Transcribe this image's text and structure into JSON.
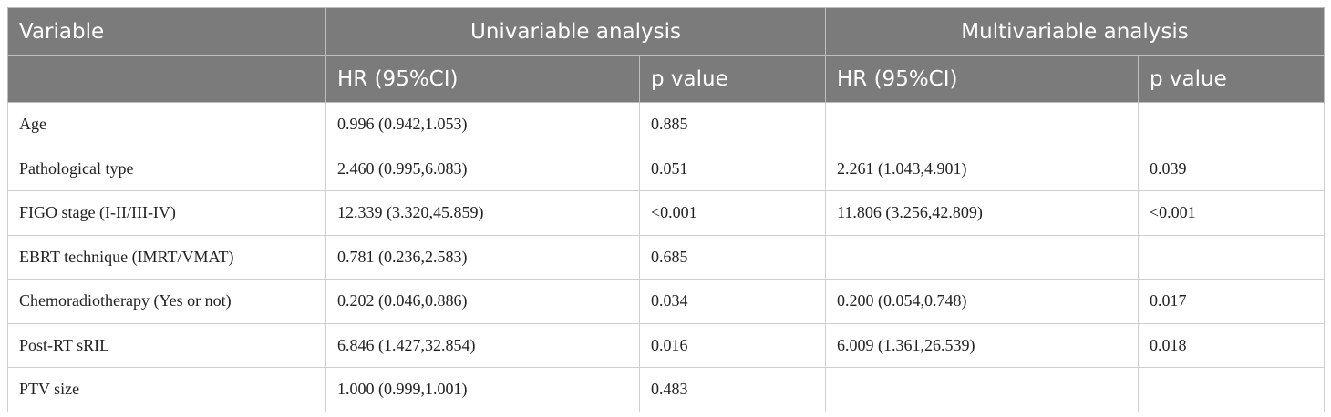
{
  "header": {
    "variable": "Variable",
    "univariable": "Univariable analysis",
    "multivariable": "Multivariable analysis",
    "hr_label": "HR (95%CI)",
    "p_label": "p value"
  },
  "rows": [
    {
      "variable": "Age",
      "uni_hr": "0.996 (0.942,1.053)",
      "uni_p": "0.885",
      "multi_hr": "",
      "multi_p": ""
    },
    {
      "variable": "Pathological type",
      "uni_hr": "2.460 (0.995,6.083)",
      "uni_p": "0.051",
      "multi_hr": "2.261 (1.043,4.901)",
      "multi_p": "0.039"
    },
    {
      "variable": "FIGO stage (I-II/III-IV)",
      "uni_hr": "12.339 (3.320,45.859)",
      "uni_p": "<0.001",
      "multi_hr": "11.806 (3.256,42.809)",
      "multi_p": "<0.001"
    },
    {
      "variable": "EBRT technique (IMRT/VMAT)",
      "uni_hr": "0.781 (0.236,2.583)",
      "uni_p": "0.685",
      "multi_hr": "",
      "multi_p": ""
    },
    {
      "variable": "Chemoradiotherapy (Yes or not)",
      "uni_hr": "0.202 (0.046,0.886)",
      "uni_p": "0.034",
      "multi_hr": "0.200 (0.054,0.748)",
      "multi_p": "0.017"
    },
    {
      "variable": "Post-RT sRIL",
      "uni_hr": "6.846 (1.427,32.854)",
      "uni_p": "0.016",
      "multi_hr": "6.009 (1.361,26.539)",
      "multi_p": "0.018"
    },
    {
      "variable": "PTV size",
      "uni_hr": "1.000 (0.999,1.001)",
      "uni_p": "0.483",
      "multi_hr": "",
      "multi_p": ""
    }
  ]
}
